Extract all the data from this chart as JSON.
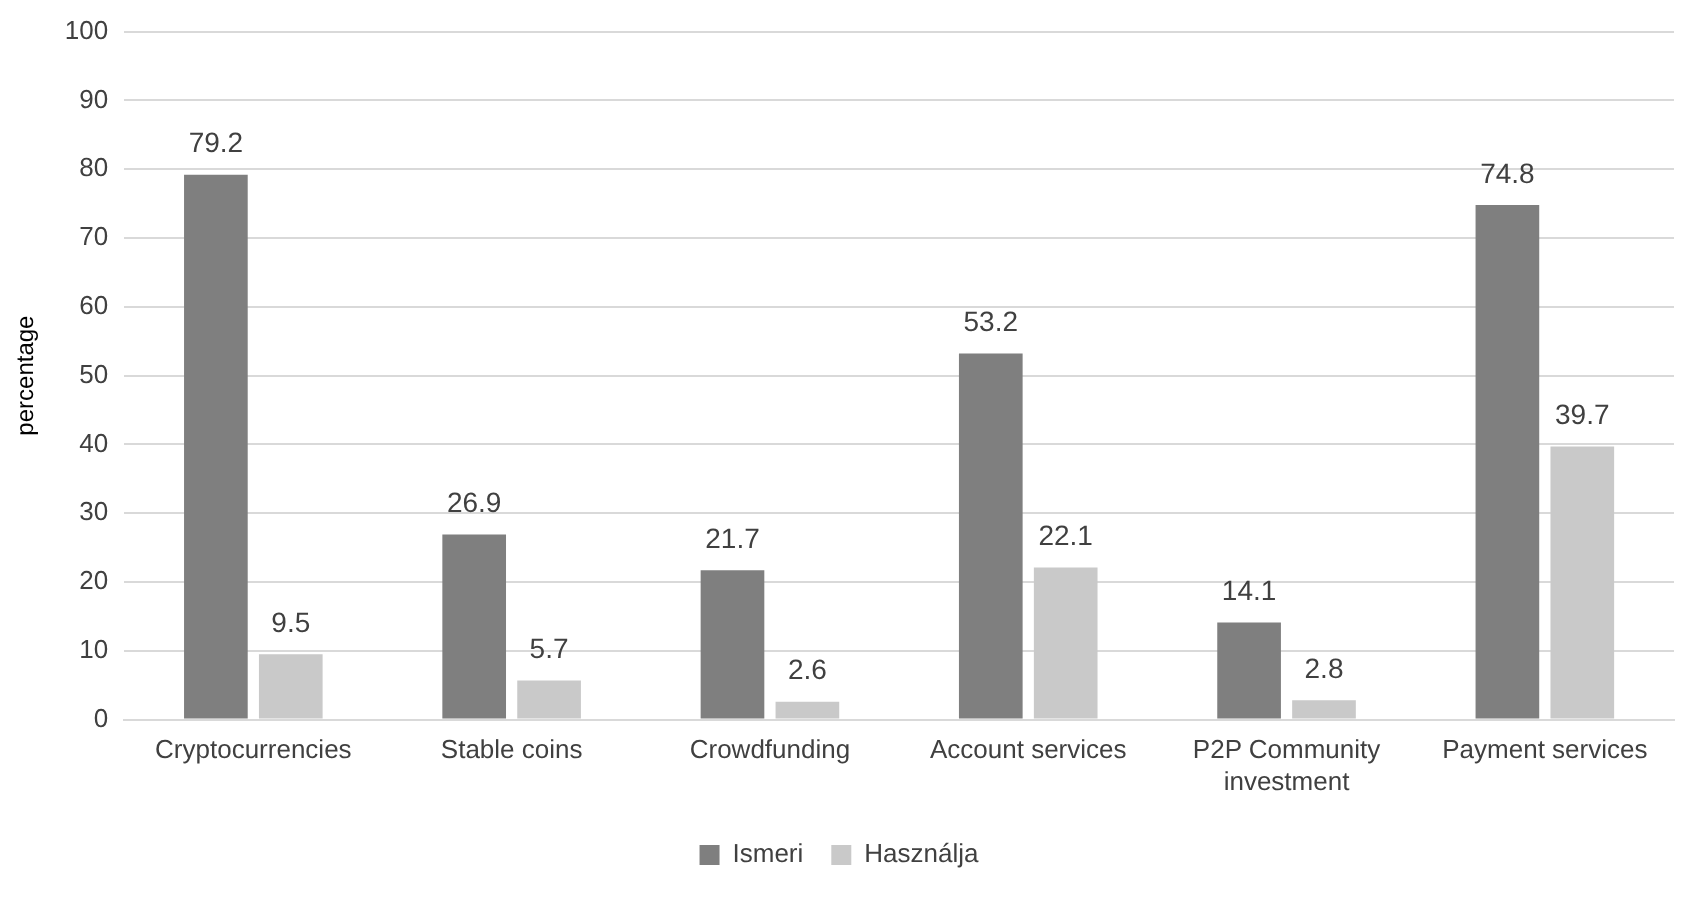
{
  "chart_data": {
    "type": "bar",
    "ylabel": "percentage",
    "categories": [
      "Cryptocurrencies",
      "Stable coins",
      "Crowdfunding",
      "Account services",
      "P2P Community investment",
      "Payment services"
    ],
    "series": [
      {
        "name": "Ismeri",
        "color": "#7f7f7f",
        "values": [
          79.2,
          26.9,
          21.7,
          53.2,
          14.1,
          74.8
        ]
      },
      {
        "name": "Használja",
        "color": "#c9c9c9",
        "values": [
          9.5,
          5.7,
          2.6,
          22.1,
          2.8,
          39.7
        ]
      }
    ],
    "ylim": [
      0,
      100
    ],
    "yticks": [
      0,
      10,
      20,
      30,
      40,
      50,
      60,
      70,
      80,
      90,
      100
    ],
    "grid": "y",
    "legend": "bottom",
    "data_labels": true
  }
}
